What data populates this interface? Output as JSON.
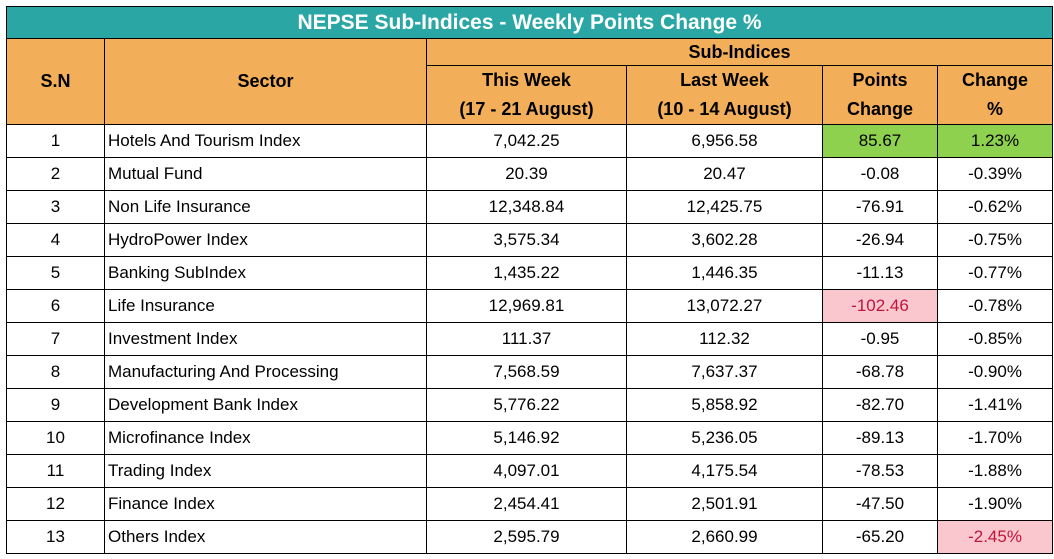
{
  "title": "NEPSE Sub-Indices - Weekly Points Change %",
  "headers": {
    "sn": "S.N",
    "sector": "Sector",
    "group": "Sub-Indices",
    "this_week_line1": "This Week",
    "this_week_line2": "(17 - 21 August)",
    "last_week_line1": "Last Week",
    "last_week_line2": "(10 - 14 August)",
    "points_line1": "Points",
    "points_line2": "Change",
    "change_line1": "Change",
    "change_line2": "%"
  },
  "rows": [
    {
      "sn": "1",
      "sector": "Hotels And Tourism Index",
      "this_week": "7,042.25",
      "last_week": "6,956.58",
      "points": "85.67",
      "change": "1.23%"
    },
    {
      "sn": "2",
      "sector": "Mutual Fund",
      "this_week": "20.39",
      "last_week": "20.47",
      "points": "-0.08",
      "change": "-0.39%"
    },
    {
      "sn": "3",
      "sector": "Non Life Insurance",
      "this_week": "12,348.84",
      "last_week": "12,425.75",
      "points": "-76.91",
      "change": "-0.62%"
    },
    {
      "sn": "4",
      "sector": "HydroPower Index",
      "this_week": "3,575.34",
      "last_week": "3,602.28",
      "points": "-26.94",
      "change": "-0.75%"
    },
    {
      "sn": "5",
      "sector": "Banking SubIndex",
      "this_week": "1,435.22",
      "last_week": "1,446.35",
      "points": "-11.13",
      "change": "-0.77%"
    },
    {
      "sn": "6",
      "sector": "Life Insurance",
      "this_week": "12,969.81",
      "last_week": "13,072.27",
      "points": "-102.46",
      "change": "-0.78%"
    },
    {
      "sn": "7",
      "sector": "Investment Index",
      "this_week": "111.37",
      "last_week": "112.32",
      "points": "-0.95",
      "change": "-0.85%"
    },
    {
      "sn": "8",
      "sector": "Manufacturing And Processing",
      "this_week": "7,568.59",
      "last_week": "7,637.37",
      "points": "-68.78",
      "change": "-0.90%"
    },
    {
      "sn": "9",
      "sector": "Development Bank Index",
      "this_week": "5,776.22",
      "last_week": "5,858.92",
      "points": "-82.70",
      "change": "-1.41%"
    },
    {
      "sn": "10",
      "sector": "Microfinance Index",
      "this_week": "5,146.92",
      "last_week": "5,236.05",
      "points": "-89.13",
      "change": "-1.70%"
    },
    {
      "sn": "11",
      "sector": "Trading Index",
      "this_week": "4,097.01",
      "last_week": "4,175.54",
      "points": "-78.53",
      "change": "-1.88%"
    },
    {
      "sn": "12",
      "sector": "Finance Index",
      "this_week": "2,454.41",
      "last_week": "2,501.91",
      "points": "-47.50",
      "change": "-1.90%"
    },
    {
      "sn": "13",
      "sector": "Others Index",
      "this_week": "2,595.79",
      "last_week": "2,660.99",
      "points": "-65.20",
      "change": "-2.45%"
    }
  ],
  "colors": {
    "title_bg": "#2aa7a5",
    "header_bg": "#f2ae59",
    "highlight_green": "#8ed14e",
    "highlight_red_bg": "#fbc7cf",
    "highlight_red_text": "#c0143c"
  }
}
